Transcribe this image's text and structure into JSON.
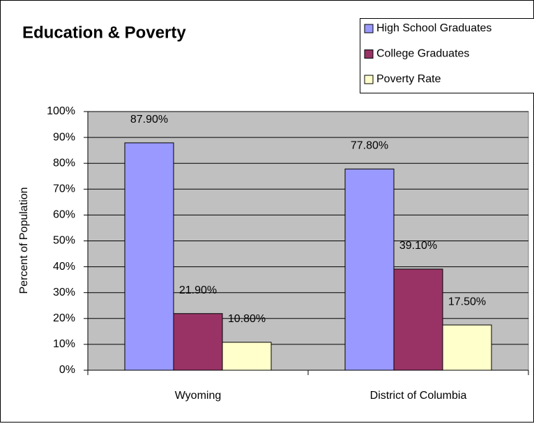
{
  "chart_data": {
    "type": "bar",
    "title": "Education & Poverty",
    "y_label": "Percent of Population",
    "categories": [
      "Wyoming",
      "District of Columbia"
    ],
    "series": [
      {
        "name": "High School Graduates",
        "color": "#9999ff",
        "values": [
          87.9,
          77.8
        ],
        "value_labels": [
          "87.90%",
          "77.80%"
        ]
      },
      {
        "name": "College Graduates",
        "color": "#993366",
        "values": [
          21.9,
          39.1
        ],
        "value_labels": [
          "21.90%",
          "39.10%"
        ]
      },
      {
        "name": "Poverty Rate",
        "color": "#ffffcc",
        "values": [
          10.8,
          17.5
        ],
        "value_labels": [
          "10.80%",
          "17.50%"
        ]
      }
    ],
    "ylim": [
      0,
      100
    ],
    "yticks": [
      {
        "value": 0,
        "label": "0%"
      },
      {
        "value": 10,
        "label": "10%"
      },
      {
        "value": 20,
        "label": "20%"
      },
      {
        "value": 30,
        "label": "30%"
      },
      {
        "value": 40,
        "label": "40%"
      },
      {
        "value": 50,
        "label": "50%"
      },
      {
        "value": 60,
        "label": "60%"
      },
      {
        "value": 70,
        "label": "70%"
      },
      {
        "value": 80,
        "label": "80%"
      },
      {
        "value": 90,
        "label": "90%"
      },
      {
        "value": 100,
        "label": "100%"
      }
    ],
    "grid": true,
    "legend": "upper right",
    "plot_background": "#c0c0c0"
  }
}
